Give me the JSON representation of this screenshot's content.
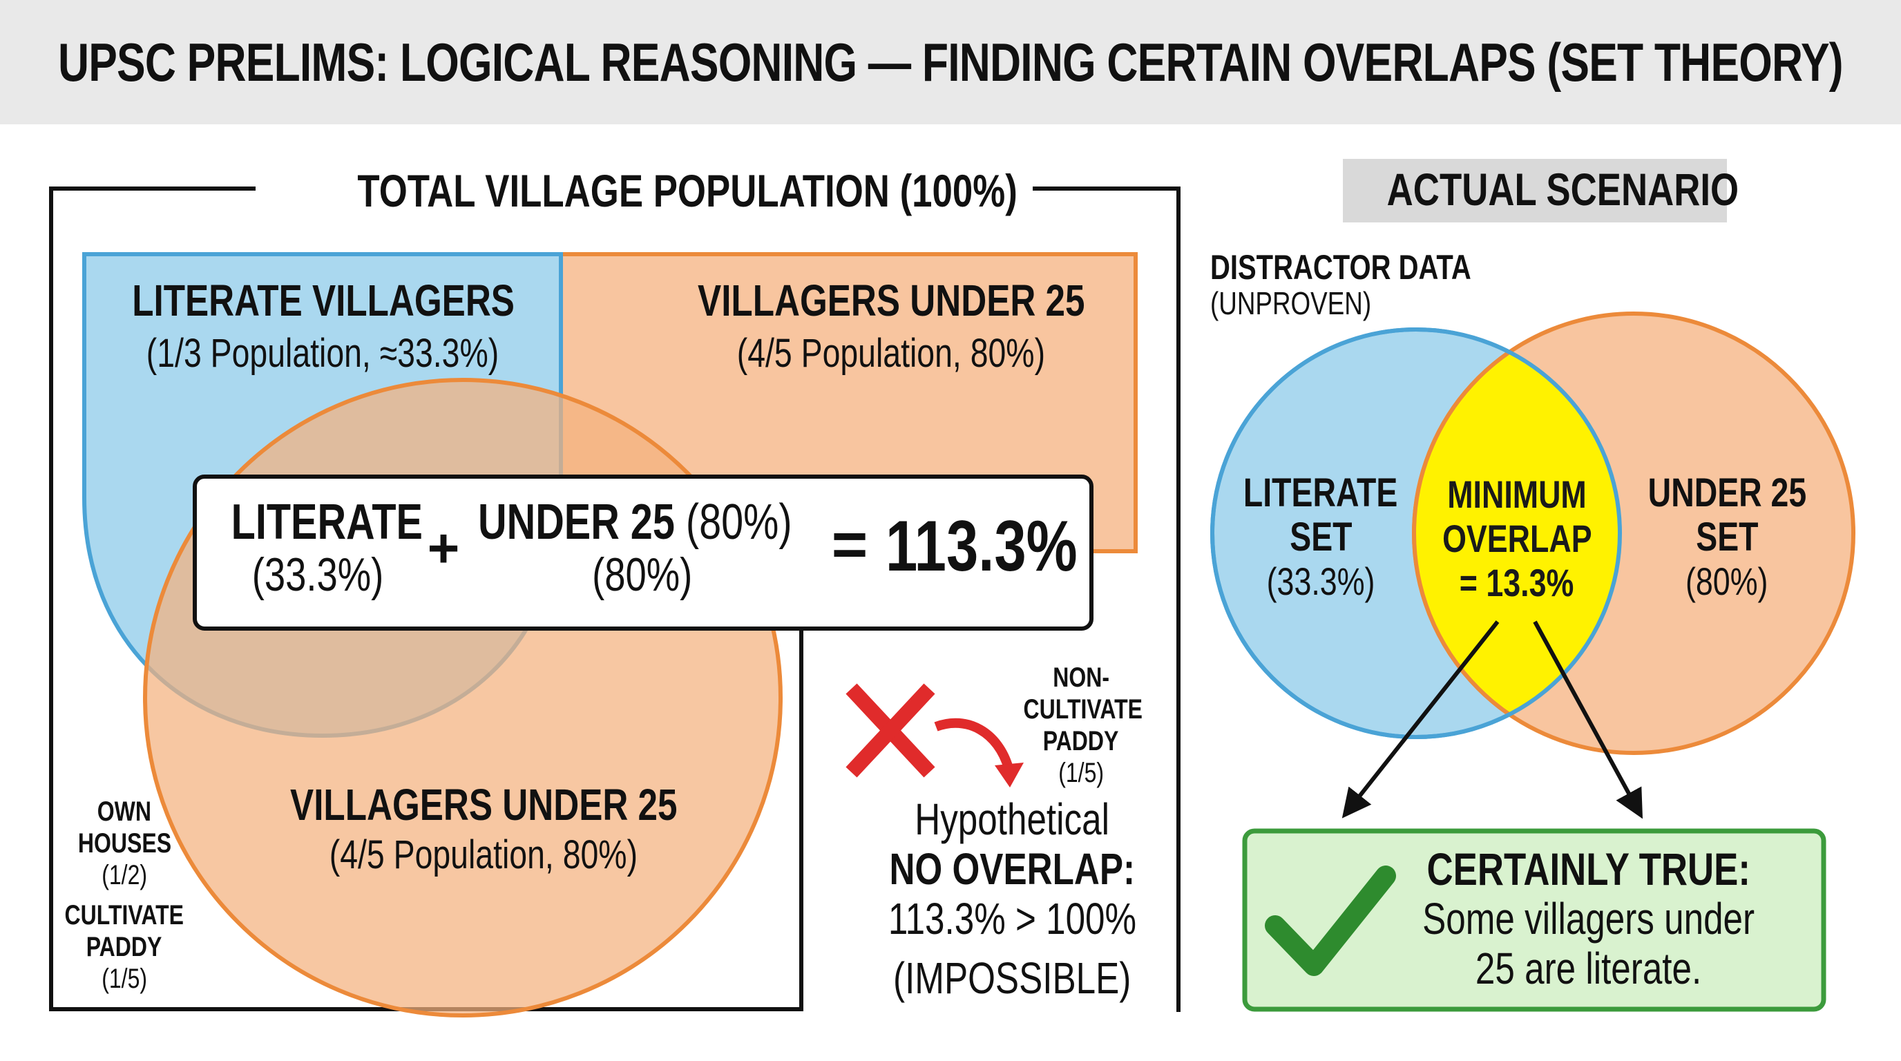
{
  "title": "UPSC PRELIMS: LOGICAL REASONING — FINDING CERTAIN OVERLAPS (SET THEORY)",
  "left_panel": {
    "frame_label": "TOTAL VILLAGE POPULATION (100%)",
    "literate_box": {
      "title": "LITERATE VILLAGERS",
      "sub": "(1/3 Population, ≈33.3%)"
    },
    "under25_box": {
      "title": "VILLAGERS UNDER 25",
      "sub": "(4/5 Population, 80%)"
    },
    "under25_circle": {
      "title": "VILLAGERS UNDER 25",
      "sub": "(4/5 Population, 80%)"
    },
    "equation": {
      "term1": "LITERATE",
      "term1_val": "(33.3%)",
      "plus": "+",
      "term2": "UNDER 25",
      "term2_inline": "(80%)",
      "term2_val": "(80%)",
      "equals": "=",
      "result": "113.3%"
    },
    "side_notes": {
      "own_houses": [
        "OWN",
        "HOUSES"
      ],
      "own_houses_frac": "(1/2)",
      "cultivate": [
        "CULTIVATE",
        "PADDY"
      ],
      "cultivate_frac": "(1/5)"
    },
    "non_cultivate": {
      "lines": [
        "NON-",
        "CULTIVATE",
        "PADDY"
      ],
      "frac": "(1/5)"
    },
    "hypothetical": {
      "line1": "Hypothetical",
      "line2": "NO OVERLAP:",
      "line3": "113.3% > 100%",
      "line4": "(IMPOSSIBLE)"
    }
  },
  "right_panel": {
    "scenario_label": "ACTUAL SCENARIO",
    "distractor_title": "DISTRACTOR DATA",
    "distractor_sub": "(UNPROVEN)",
    "literate_set": {
      "l1": "LITERATE",
      "l2": "SET",
      "val": "(33.3%)"
    },
    "overlap": {
      "l1": "MINIMUM",
      "l2": "OVERLAP",
      "l3": "= 13.3%"
    },
    "under25_set": {
      "l1": "UNDER 25",
      "l2": "SET",
      "val": "(80%)"
    },
    "conclusion": {
      "title": "CERTAINLY TRUE:",
      "l1": "Some villagers under",
      "l2": "25 are literate."
    }
  },
  "colors": {
    "blue_fill": "#aad8ef",
    "blue_stroke": "#4aa3d6",
    "orange_fill": "#f8c59f",
    "orange_stroke": "#ec8a3a",
    "overlap_yellow": "#fff200",
    "green_fill": "#d9f2cf",
    "green_stroke": "#3c9b3c",
    "red_x": "#e02b2b"
  }
}
